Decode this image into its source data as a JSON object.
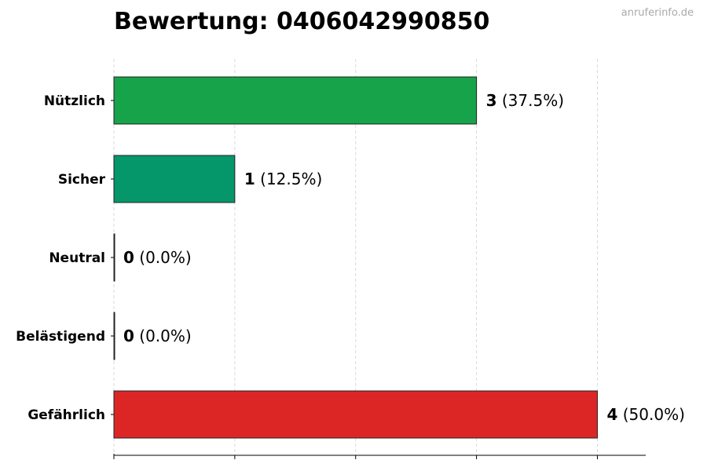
{
  "header": {
    "title": "Bewertung: 0406042990850",
    "watermark": "anruferinfo.de"
  },
  "chart_data": {
    "type": "bar",
    "orientation": "horizontal",
    "title": "Bewertung: 0406042990850",
    "categories": [
      "Nützlich",
      "Sicher",
      "Neutral",
      "Belästigend",
      "Gefährlich"
    ],
    "values": [
      3,
      1,
      0,
      0,
      4
    ],
    "percent_labels": [
      "(37.5%)",
      "(12.5%)",
      "(0.0%)",
      "(0.0%)",
      "(50.0%)"
    ],
    "colors": [
      "#17a34a",
      "#05966a",
      "#888888",
      "#888888",
      "#dc2626"
    ],
    "xlim": [
      0,
      4.4
    ],
    "xticks": [
      0,
      1,
      2,
      3,
      4
    ],
    "xtick_labels_shown": false,
    "grid": "vertical dashed",
    "legend": "none"
  }
}
